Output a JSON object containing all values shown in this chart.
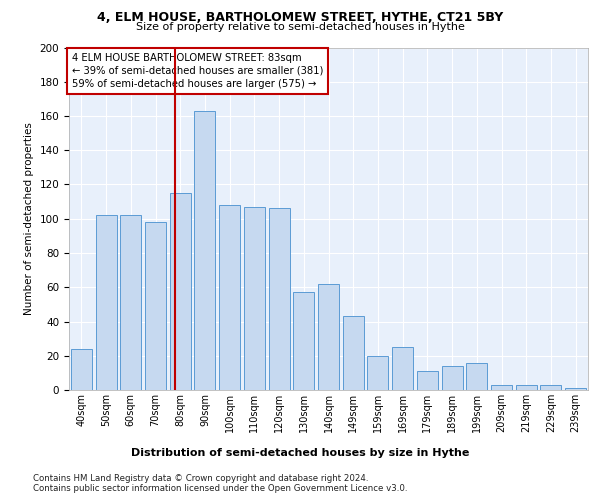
{
  "title1": "4, ELM HOUSE, BARTHOLOMEW STREET, HYTHE, CT21 5BY",
  "title2": "Size of property relative to semi-detached houses in Hythe",
  "xlabel": "Distribution of semi-detached houses by size in Hythe",
  "ylabel": "Number of semi-detached properties",
  "categories": [
    "40sqm",
    "50sqm",
    "60sqm",
    "70sqm",
    "80sqm",
    "90sqm",
    "100sqm",
    "110sqm",
    "120sqm",
    "130sqm",
    "140sqm",
    "149sqm",
    "159sqm",
    "169sqm",
    "179sqm",
    "189sqm",
    "199sqm",
    "209sqm",
    "219sqm",
    "229sqm",
    "239sqm"
  ],
  "values": [
    24,
    102,
    102,
    98,
    115,
    163,
    108,
    107,
    106,
    57,
    62,
    43,
    20,
    25,
    11,
    14,
    16,
    3,
    3,
    3,
    1
  ],
  "bar_color": "#c6d9f0",
  "bar_edge_color": "#5b9bd5",
  "highlight_color": "#c00000",
  "annotation_text": "4 ELM HOUSE BARTHOLOMEW STREET: 83sqm\n← 39% of semi-detached houses are smaller (381)\n59% of semi-detached houses are larger (575) →",
  "ylim": [
    0,
    200
  ],
  "yticks": [
    0,
    20,
    40,
    60,
    80,
    100,
    120,
    140,
    160,
    180,
    200
  ],
  "footer1": "Contains HM Land Registry data © Crown copyright and database right 2024.",
  "footer2": "Contains public sector information licensed under the Open Government Licence v3.0.",
  "bg_color": "#e8f0fb",
  "grid_color": "#ffffff",
  "bar_width": 0.85
}
